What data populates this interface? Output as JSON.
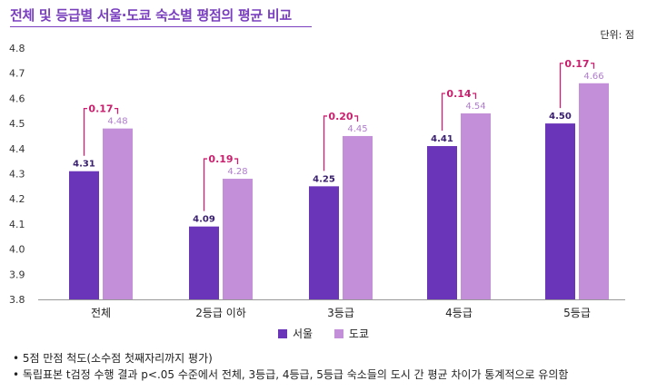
{
  "header": {
    "title": "전체 및 등급별 서울·도쿄 숙소별 평점의 평균 비교",
    "unit": "단위: 점"
  },
  "colors": {
    "seoul": "#6a35b8",
    "tokyo": "#c28fd8",
    "diff": "#c8206e",
    "title": "#7a3fbf"
  },
  "chart_data": {
    "type": "bar",
    "title": "전체 및 등급별 서울·도쿄 숙소별 평점의 평균 비교",
    "categories": [
      "전체",
      "2등급 이하",
      "3등급",
      "4등급",
      "5등급"
    ],
    "series": [
      {
        "name": "서울",
        "values": [
          4.31,
          4.09,
          4.25,
          4.41,
          4.5
        ],
        "labels": [
          "4.31",
          "4.09",
          "4.25",
          "4.41",
          "4.50"
        ]
      },
      {
        "name": "도쿄",
        "values": [
          4.48,
          4.28,
          4.45,
          4.54,
          4.66
        ],
        "labels": [
          "4.48",
          "4.28",
          "4.45",
          "4.54",
          "4.66"
        ]
      }
    ],
    "differences": [
      "0.17",
      "0.19",
      "0.20",
      "0.14",
      "0.17"
    ],
    "ylim": [
      3.8,
      4.8
    ],
    "yticks": [
      "3.8",
      "3.9",
      "4.0",
      "4.1",
      "4.2",
      "4.3",
      "4.4",
      "4.5",
      "4.6",
      "4.7",
      "4.8"
    ],
    "xlabel": "",
    "ylabel": "",
    "legend": "bottom-center"
  },
  "legend": {
    "seoul": "서울",
    "tokyo": "도쿄"
  },
  "notes": [
    "5점 만점 척도(소수점 첫째자리까지 평가)",
    "독립표본 t검정 수행 결과 p<.05 수준에서 전체, 3등급, 4등급, 5등급 숙소들의 도시 간 평균 차이가 통계적으로 유의함"
  ]
}
